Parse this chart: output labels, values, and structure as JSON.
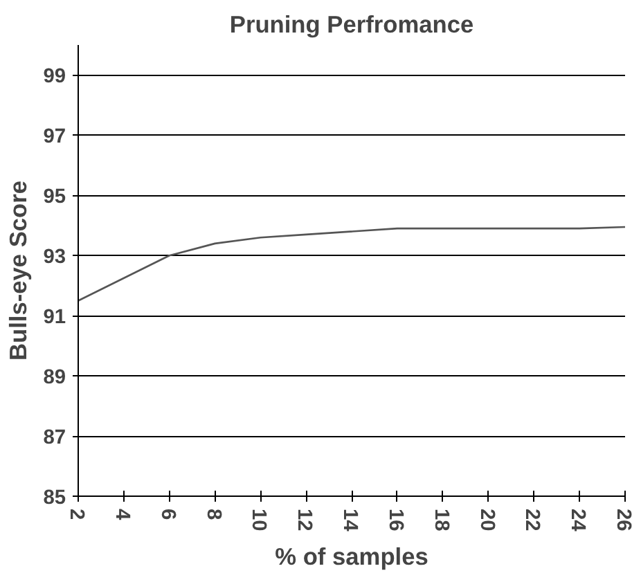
{
  "chart_data": {
    "type": "line",
    "title": "Pruning Perfromance",
    "xlabel": "% of samples",
    "ylabel": "Bulls-eye Score",
    "x": [
      2,
      6,
      8,
      10,
      12,
      16,
      24,
      26
    ],
    "series": [
      {
        "color": "#555555",
        "values": [
          91.5,
          93.0,
          93.4,
          93.6,
          93.7,
          93.9,
          93.9,
          93.95
        ]
      }
    ],
    "xlim": [
      2,
      26
    ],
    "xticks": [
      2,
      4,
      6,
      8,
      10,
      12,
      14,
      16,
      18,
      20,
      22,
      24,
      26
    ],
    "ylim": [
      85,
      100
    ],
    "yticks": [
      85,
      87,
      89,
      91,
      93,
      95,
      97,
      99
    ],
    "grid": "y",
    "marker": "none",
    "line_style": "solid"
  }
}
